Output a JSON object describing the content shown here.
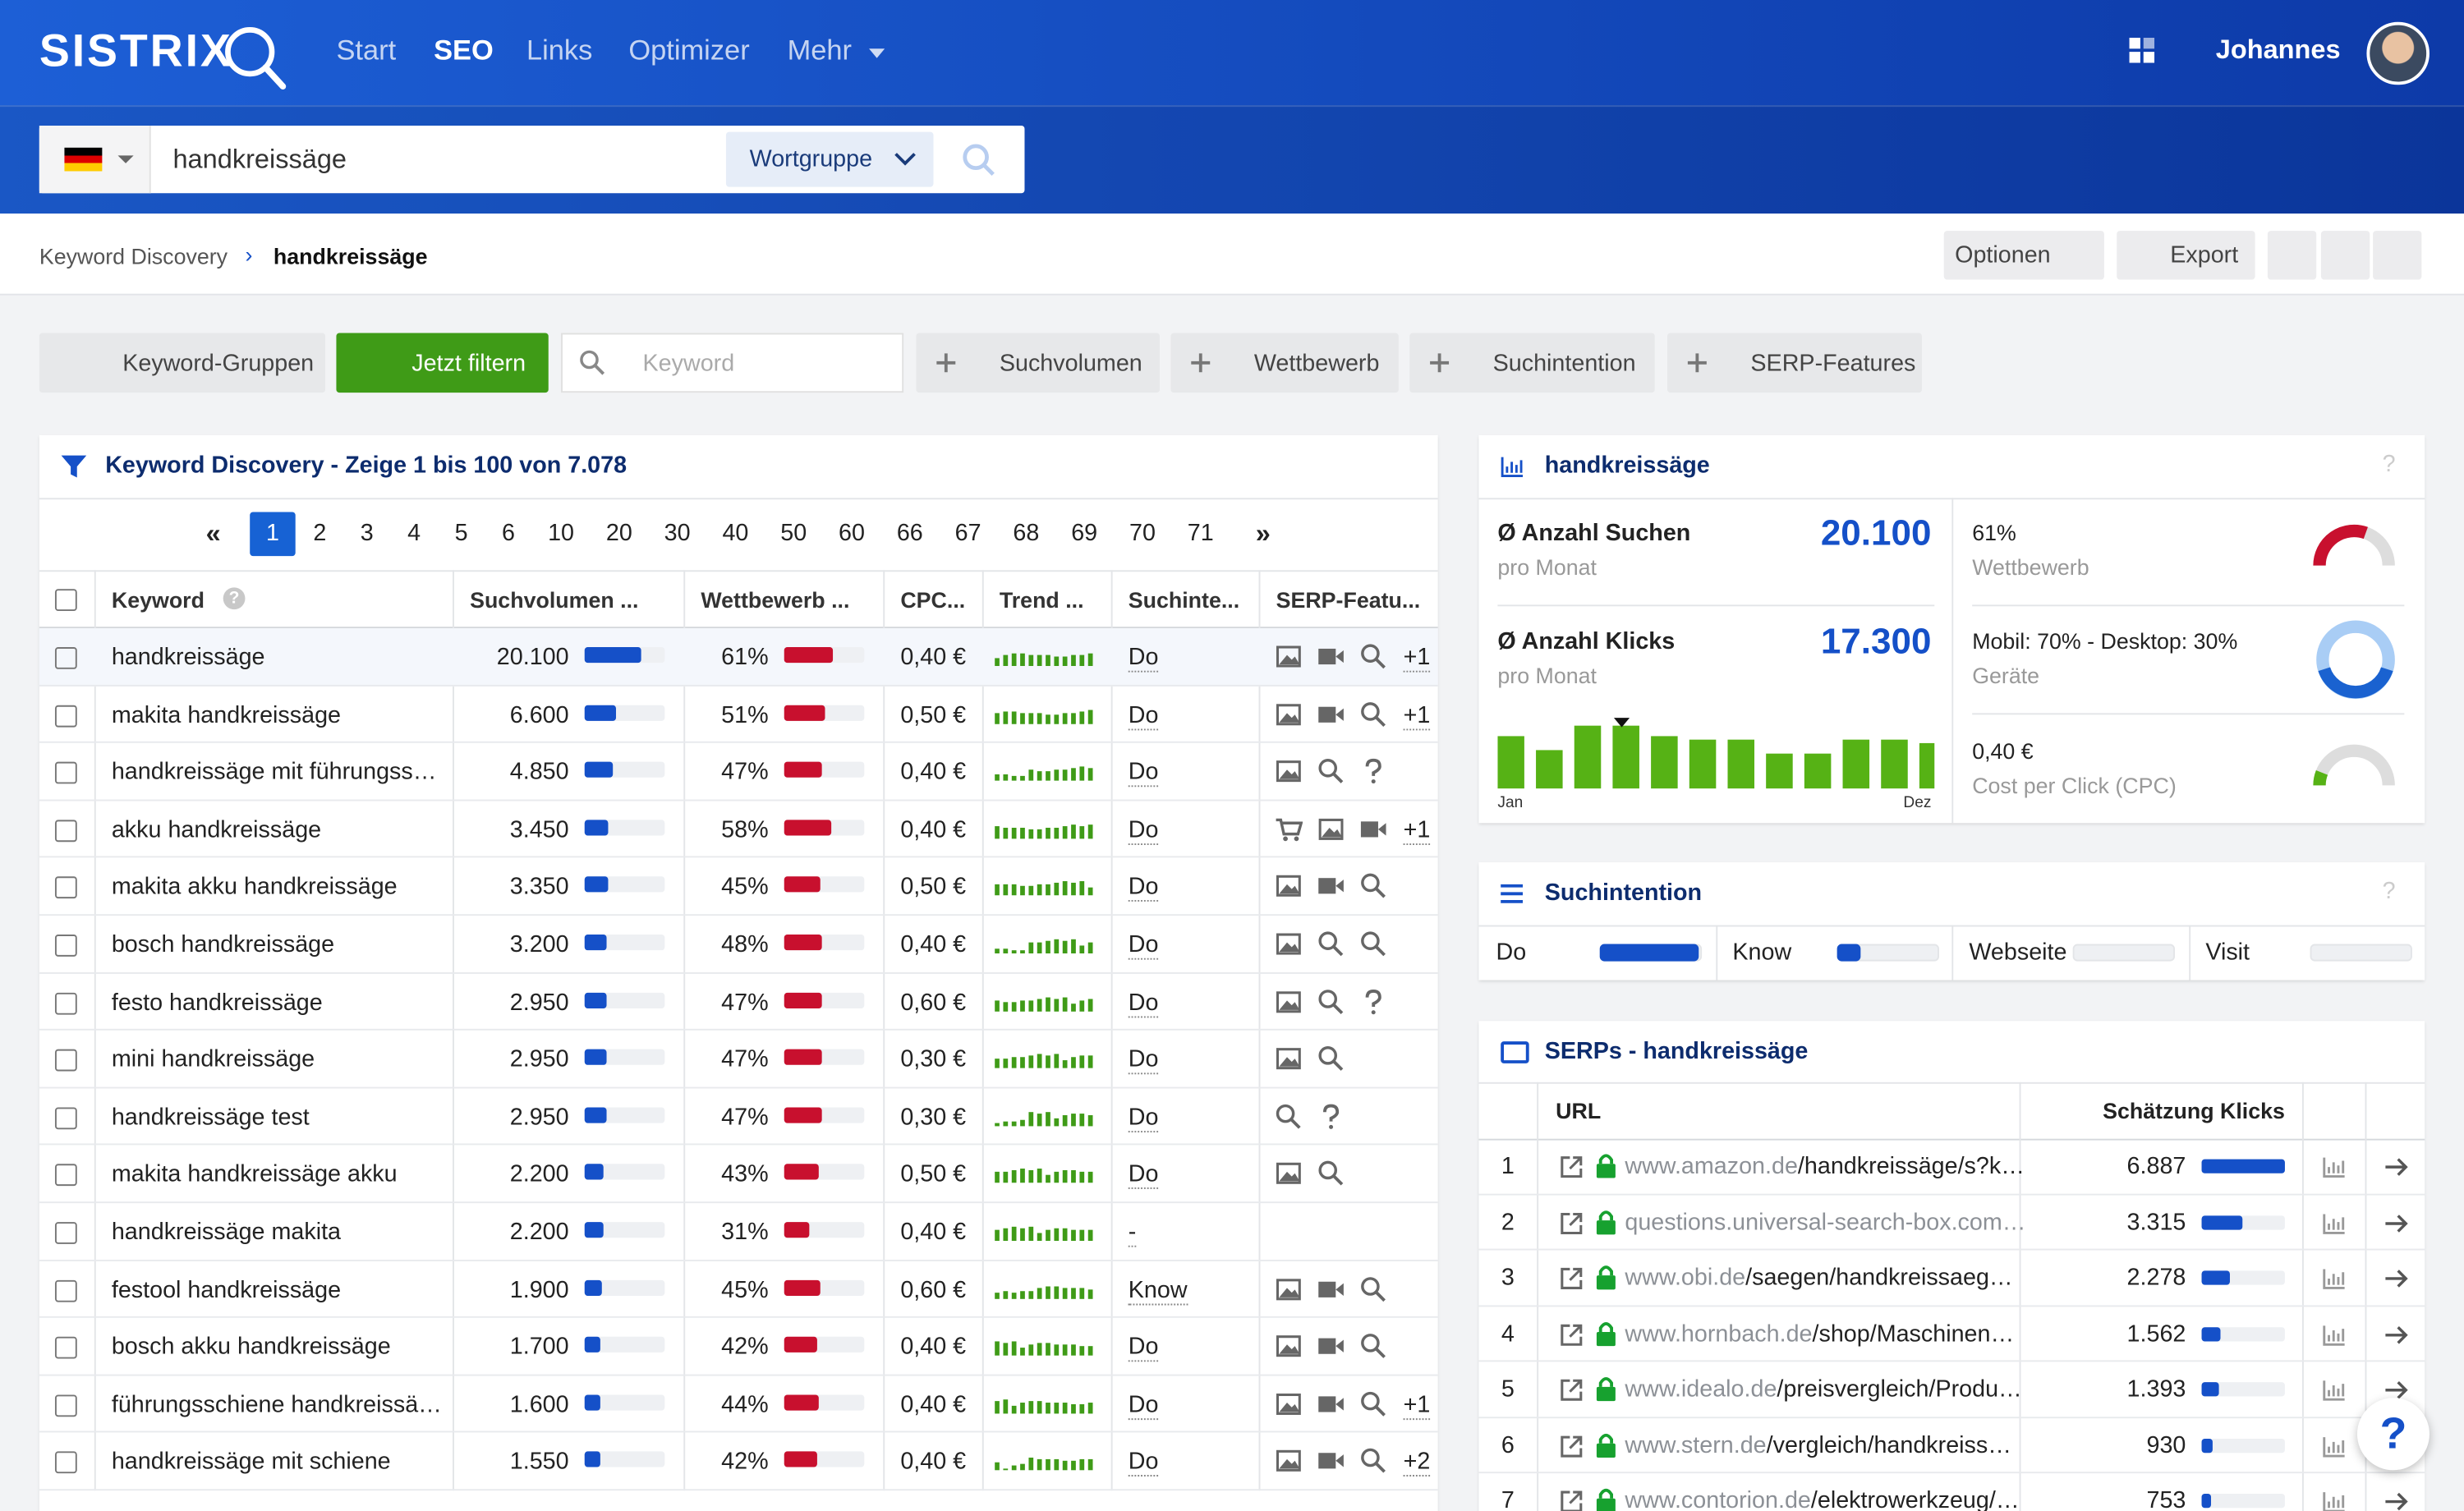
{
  "header": {
    "logo": "SISTRIX",
    "nav": [
      "Start",
      "SEO",
      "Links",
      "Optimizer",
      "Mehr"
    ],
    "user": "Johannes"
  },
  "search": {
    "query": "handkreissäge",
    "mode": "Wortgruppe"
  },
  "breadcrumb": [
    "Keyword Discovery",
    "handkreissäge"
  ],
  "toolbar": [
    "Optionen",
    "Export"
  ],
  "filters": {
    "groups": "Keyword-Gruppen",
    "apply": "Jetzt filtern",
    "keyword_placeholder": "Keyword",
    "items": [
      "Suchvolumen",
      "Wettbewerb",
      "Suchintention",
      "SERP-Features"
    ]
  },
  "table": {
    "title": "Keyword Discovery - Zeige 1 bis 100 von 7.078",
    "pages": [
      "1",
      "2",
      "3",
      "4",
      "5",
      "6",
      "10",
      "20",
      "30",
      "40",
      "50",
      "60",
      "66",
      "67",
      "68",
      "69",
      "70",
      "71"
    ],
    "columns": [
      "Keyword",
      "Suchvolumen ...",
      "Wettbewerb ...",
      "CPC...",
      "Trend ...",
      "Suchinte...",
      "SERP-Featu..."
    ],
    "rows": [
      {
        "keyword": "handkreissäge",
        "volume": "20.100",
        "competition": "61%",
        "cpc": "0,40 €",
        "intent": "Do",
        "serp_more": "+1"
      },
      {
        "keyword": "makita handkreissäge",
        "volume": "6.600",
        "competition": "51%",
        "cpc": "0,50 €",
        "intent": "Do",
        "serp_more": "+1"
      },
      {
        "keyword": "handkreissäge mit führungss…",
        "volume": "4.850",
        "competition": "47%",
        "cpc": "0,40 €",
        "intent": "Do"
      },
      {
        "keyword": "akku handkreissäge",
        "volume": "3.450",
        "competition": "58%",
        "cpc": "0,40 €",
        "intent": "Do",
        "serp_more": "+1"
      },
      {
        "keyword": "makita akku handkreissäge",
        "volume": "3.350",
        "competition": "45%",
        "cpc": "0,50 €",
        "intent": "Do"
      },
      {
        "keyword": "bosch handkreissäge",
        "volume": "3.200",
        "competition": "48%",
        "cpc": "0,40 €",
        "intent": "Do"
      },
      {
        "keyword": "festo handkreissäge",
        "volume": "2.950",
        "competition": "47%",
        "cpc": "0,60 €",
        "intent": "Do"
      },
      {
        "keyword": "mini handkreissäge",
        "volume": "2.950",
        "competition": "47%",
        "cpc": "0,30 €",
        "intent": "Do"
      },
      {
        "keyword": "handkreissäge test",
        "volume": "2.950",
        "competition": "47%",
        "cpc": "0,30 €",
        "intent": "Do"
      },
      {
        "keyword": "makita handkreissäge akku",
        "volume": "2.200",
        "competition": "43%",
        "cpc": "0,50 €",
        "intent": "Do"
      },
      {
        "keyword": "handkreissäge makita",
        "volume": "2.200",
        "competition": "31%",
        "cpc": "0,40 €",
        "intent": "-"
      },
      {
        "keyword": "festool handkreissäge",
        "volume": "1.900",
        "competition": "45%",
        "cpc": "0,60 €",
        "intent": "Know"
      },
      {
        "keyword": "bosch akku handkreissäge",
        "volume": "1.700",
        "competition": "42%",
        "cpc": "0,40 €",
        "intent": "Do"
      },
      {
        "keyword": "führungsschiene handkreissä…",
        "volume": "1.600",
        "competition": "44%",
        "cpc": "0,40 €",
        "intent": "Do",
        "serp_more": "+1"
      },
      {
        "keyword": "handkreissäge mit schiene",
        "volume": "1.550",
        "competition": "42%",
        "cpc": "0,40 €",
        "intent": "Do",
        "serp_more": "+2"
      }
    ]
  },
  "overview": {
    "title": "handkreissäge",
    "searches_label": "Anzahl Suchen",
    "searches_sub": "pro Monat",
    "searches": "20.100",
    "clicks_label": "Anzahl Klicks",
    "clicks_sub": "pro Monat",
    "clicks": "17.300",
    "months": [
      "Jan",
      "Dez"
    ],
    "monthly": [
      30,
      22,
      36,
      36,
      30,
      28,
      28,
      20,
      20,
      28,
      28,
      26
    ],
    "competition": {
      "value": "61%",
      "label": "Wettbewerb"
    },
    "devices": {
      "value": "Mobil: 70% - Desktop: 30%",
      "label": "Geräte"
    },
    "cpc": {
      "value": "0,40 €",
      "label": "Cost per Click (CPC)"
    }
  },
  "intent": {
    "title": "Suchintention",
    "items": [
      {
        "label": "Do",
        "share": 100
      },
      {
        "label": "Know",
        "share": 25
      },
      {
        "label": "Webseite",
        "share": 0
      },
      {
        "label": "Visit",
        "share": 0
      }
    ]
  },
  "serps": {
    "title": "SERPs - handkreissäge",
    "columns": [
      "URL",
      "Schätzung Klicks"
    ],
    "rows": [
      {
        "rank": "1",
        "domain": "www.amazon.de",
        "path": "/handkreissäge/s?k…",
        "clicks": "6.887"
      },
      {
        "rank": "2",
        "domain": "questions.universal-search-box.com…",
        "clicks": "3.315"
      },
      {
        "rank": "3",
        "domain": "www.obi.de",
        "path": "/saegen/handkreissaeg…",
        "clicks": "2.278"
      },
      {
        "rank": "4",
        "domain": "www.hornbach.de",
        "path": "/shop/Maschinen…",
        "clicks": "1.562"
      },
      {
        "rank": "5",
        "domain": "www.idealo.de",
        "path": "/preisvergleich/Produ…",
        "clicks": "1.393"
      },
      {
        "rank": "6",
        "domain": "www.stern.de",
        "path": "/vergleich/handkreiss…",
        "clicks": "930"
      },
      {
        "rank": "7",
        "domain": "www.contorion.de",
        "path": "/elektrowerkzeug/…",
        "clicks": "753"
      }
    ]
  }
}
